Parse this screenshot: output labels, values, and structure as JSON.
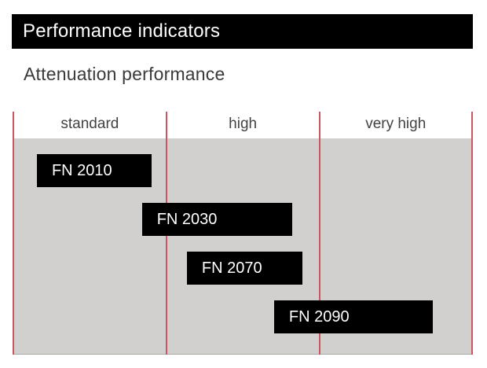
{
  "header": {
    "title": "Performance indicators"
  },
  "section": {
    "title": "Attenuation performance"
  },
  "chart_data": {
    "type": "bar",
    "orientation": "horizontal-range",
    "title": "Attenuation performance",
    "categories": [
      "standard",
      "high",
      "very high"
    ],
    "category_boundaries": [
      0,
      0.3335,
      0.667,
      1
    ],
    "series": [
      {
        "name": "FN 2010",
        "start": 0.053,
        "end": 0.303,
        "category_span": [
          "standard"
        ],
        "row": 0
      },
      {
        "name": "FN 2030",
        "start": 0.282,
        "end": 0.61,
        "category_span": [
          "standard",
          "high"
        ],
        "row": 1
      },
      {
        "name": "FN 2070",
        "start": 0.38,
        "end": 0.632,
        "category_span": [
          "high"
        ],
        "row": 2
      },
      {
        "name": "FN 2090",
        "start": 0.57,
        "end": 0.916,
        "category_span": [
          "high",
          "very high"
        ],
        "row": 3
      }
    ],
    "x_axis": {
      "min": 0,
      "max": 1,
      "tick_labels": "none",
      "gridlines": "vertical lines at category boundaries"
    },
    "y_axis": {
      "labels": "inside bars"
    },
    "legend": "none"
  },
  "colors": {
    "header_bg": "#000000",
    "header_text": "#ffffff",
    "subtitle_text": "#3a3a3a",
    "category_text": "#424242",
    "plot_bg": "#d1d0ce",
    "plot_bottom_edge": "#a9a8a5",
    "gridline": "#cb5560",
    "bar_bg": "#000000",
    "bar_text": "#ffffff"
  }
}
